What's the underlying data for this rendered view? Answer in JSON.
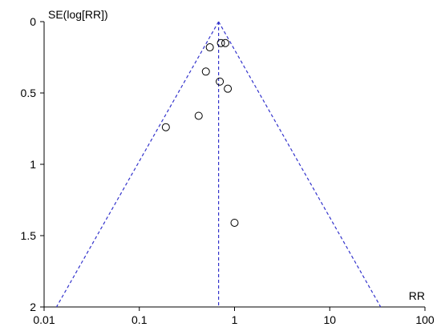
{
  "chart_data": {
    "type": "scatter",
    "subtype": "funnel-plot",
    "title": "",
    "xlabel": "RR",
    "ylabel": "SE(log[RR])",
    "x_scale": "log",
    "xlim": [
      0.01,
      100
    ],
    "ylim": [
      0,
      2
    ],
    "y_inverted": true,
    "x_ticks": [
      0.01,
      0.1,
      1,
      10,
      100
    ],
    "x_tick_labels": [
      "0.01",
      "0.1",
      "1",
      "10",
      "100"
    ],
    "y_ticks": [
      0,
      0.5,
      1,
      1.5,
      2
    ],
    "y_tick_labels": [
      "0",
      "0.5",
      "1",
      "1.5",
      "2"
    ],
    "grid": false,
    "pooled_rr": 0.68,
    "funnel_limit": "95% CI (dashed lines)",
    "points": [
      {
        "rr": 0.72,
        "se": 0.15
      },
      {
        "rr": 0.8,
        "se": 0.15
      },
      {
        "rr": 0.55,
        "se": 0.18
      },
      {
        "rr": 0.5,
        "se": 0.35
      },
      {
        "rr": 0.7,
        "se": 0.42
      },
      {
        "rr": 0.85,
        "se": 0.47
      },
      {
        "rr": 0.42,
        "se": 0.66
      },
      {
        "rr": 0.19,
        "se": 0.74
      },
      {
        "rr": 1.0,
        "se": 1.41
      }
    ],
    "colors": {
      "funnel_line": "#3333cc",
      "markers": "#000000",
      "axes": "#000000"
    }
  }
}
